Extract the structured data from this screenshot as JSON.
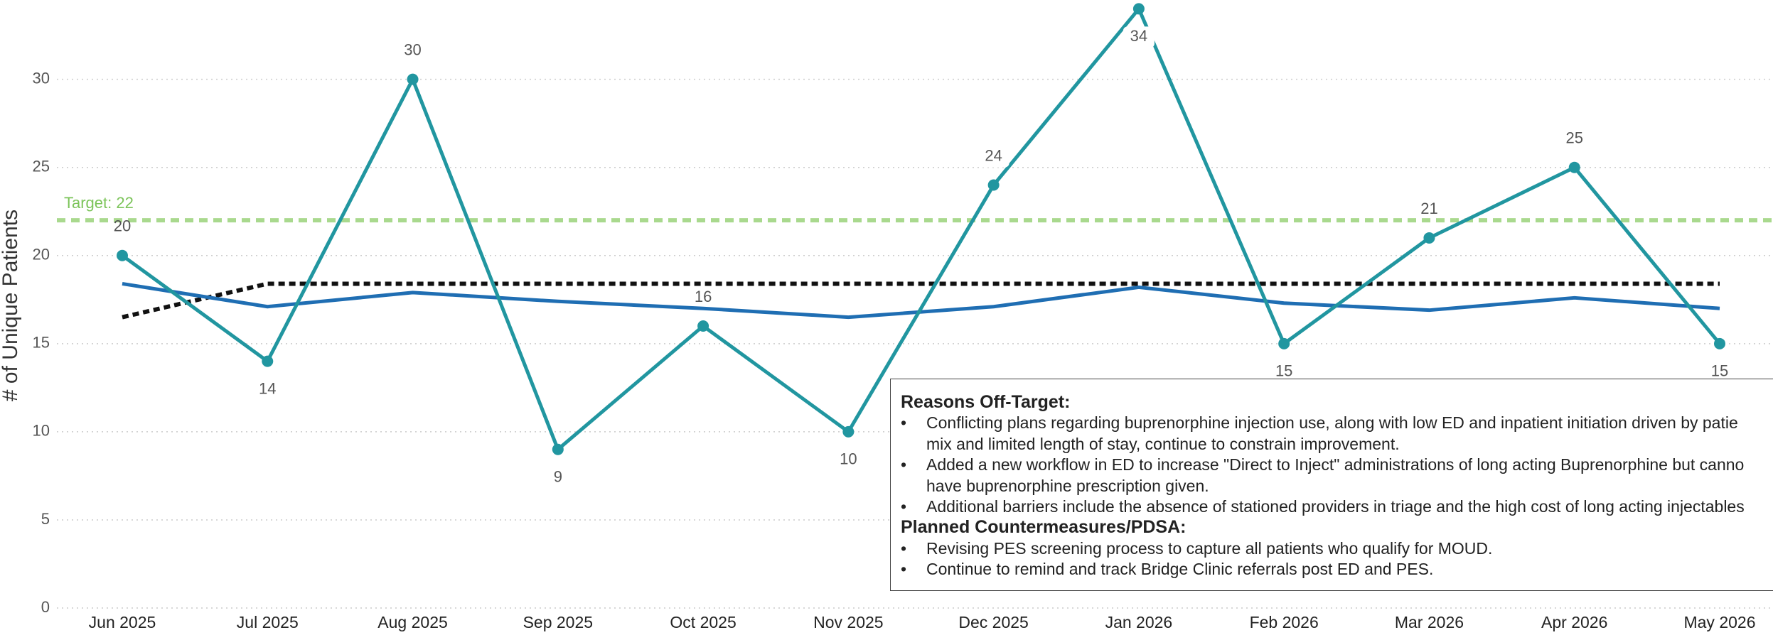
{
  "chart_data": {
    "type": "line",
    "y_label": "# of Unique Patients",
    "categories": [
      "Jun 2025",
      "Jul 2025",
      "Aug 2025",
      "Sep 2025",
      "Oct 2025",
      "Nov 2025",
      "Dec 2025",
      "Jan 2026",
      "Feb 2026",
      "Mar 2026",
      "Apr 2026",
      "May 2026"
    ],
    "series": [
      {
        "color": "#2196a0",
        "values": [
          20,
          14,
          30,
          9,
          16,
          10,
          24,
          34,
          15,
          21,
          25,
          15
        ],
        "labels": true,
        "markers": true,
        "style": "solid"
      },
      {
        "color": "#1f6eb3",
        "values": [
          18.4,
          17.1,
          17.9,
          17.4,
          17.0,
          16.5,
          17.1,
          18.2,
          17.3,
          16.9,
          17.6,
          17.0
        ],
        "style": "solid"
      },
      {
        "color": "#111111",
        "values": [
          16.5,
          18.4,
          18.4,
          18.4,
          18.4,
          18.4,
          18.4,
          18.4,
          18.4,
          18.4,
          18.4,
          18.4
        ],
        "style": "dotted"
      }
    ],
    "target": {
      "value": 22,
      "label": "Target: 22",
      "color": "#a9d98e"
    },
    "ylim": [
      0,
      34.5
    ],
    "yticks": [
      0,
      5,
      10,
      15,
      20,
      25,
      30
    ],
    "grid": true,
    "note": [
      {
        "heading": "Reasons Off-Target:",
        "items": [
          [
            "Conflicting plans regarding buprenorphine injection use, along with low ED and inpatient initiation driven by patie",
            "mix and limited length of stay, continue to constrain improvement."
          ],
          [
            "Added a new workflow in ED to increase \"Direct to Inject\" administrations of long acting Buprenorphine but canno",
            "have buprenorphine prescription given."
          ],
          [
            "Additional barriers include the absence of stationed providers in triage and the high cost of long acting injectables"
          ]
        ]
      },
      {
        "heading": "Planned Countermeasures/PDSA:",
        "items": [
          [
            "Revising PES screening process to capture all patients who qualify for MOUD."
          ],
          [
            "Continue to remind and track Bridge Clinic referrals post ED and PES."
          ]
        ]
      }
    ]
  }
}
